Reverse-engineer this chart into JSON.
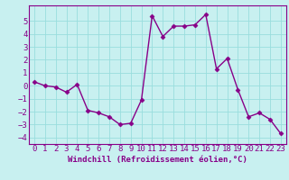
{
  "x": [
    0,
    1,
    2,
    3,
    4,
    5,
    6,
    7,
    8,
    9,
    10,
    11,
    12,
    13,
    14,
    15,
    16,
    17,
    18,
    19,
    20,
    21,
    22,
    23
  ],
  "y": [
    0.3,
    0.0,
    -0.1,
    -0.5,
    0.1,
    -1.9,
    -2.1,
    -2.4,
    -3.0,
    -2.9,
    -1.1,
    5.4,
    3.8,
    4.6,
    4.6,
    4.7,
    5.5,
    1.3,
    2.1,
    -0.3,
    -2.4,
    -2.1,
    -2.6,
    -3.7
  ],
  "line_color": "#880088",
  "marker": "D",
  "marker_size": 2.5,
  "bg_color": "#c8f0f0",
  "grid_color": "#99dddd",
  "xlabel": "Windchill (Refroidissement éolien,°C)",
  "xlim": [
    -0.5,
    23.5
  ],
  "ylim": [
    -4.5,
    6.2
  ],
  "xticks": [
    0,
    1,
    2,
    3,
    4,
    5,
    6,
    7,
    8,
    9,
    10,
    11,
    12,
    13,
    14,
    15,
    16,
    17,
    18,
    19,
    20,
    21,
    22,
    23
  ],
  "yticks": [
    -4,
    -3,
    -2,
    -1,
    0,
    1,
    2,
    3,
    4,
    5
  ],
  "xlabel_fontsize": 6.5,
  "tick_fontsize": 6.5,
  "line_width": 1.0
}
